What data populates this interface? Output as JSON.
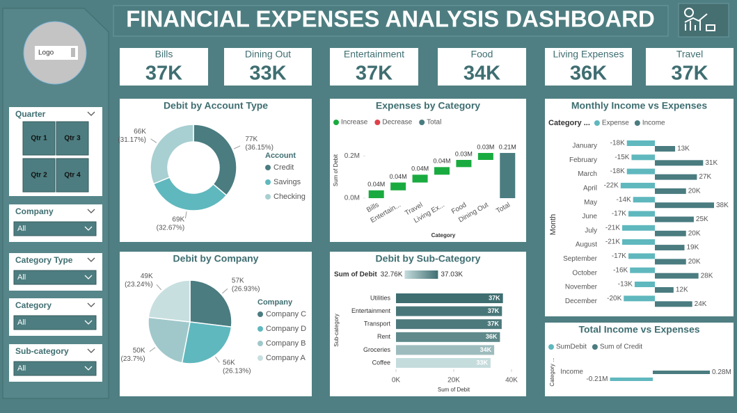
{
  "header": {
    "title": "FINANCIAL EXPENSES ANALYSIS DASHBOARD",
    "logo": "Logo"
  },
  "kpis": [
    {
      "label": "Bills",
      "value": "37K"
    },
    {
      "label": "Dining Out",
      "value": "33K"
    },
    {
      "label": "Entertainment",
      "value": "37K"
    },
    {
      "label": "Food",
      "value": "34K"
    },
    {
      "label": "Living Expenses",
      "value": "36K"
    },
    {
      "label": "Travel",
      "value": "37K"
    }
  ],
  "slicers": [
    {
      "title": "Quarter",
      "options": [
        "Qtr 1",
        "Qtr 3",
        "Qtr 2",
        "Qtr 4"
      ]
    },
    {
      "title": "Company",
      "selection": "All"
    },
    {
      "title": "Category Type",
      "selection": "All"
    },
    {
      "title": "Category",
      "selection": "All"
    },
    {
      "title": "Sub-category",
      "selection": "All"
    }
  ],
  "chart_data": [
    {
      "type": "donut",
      "title": "Debit by Account Type",
      "legend_title": "Account",
      "categories": [
        "Credit",
        "Savings",
        "Checking"
      ],
      "values": [
        76650,
        69270,
        66090
      ],
      "value_labels": [
        "77K",
        "69K",
        "66K"
      ],
      "percent_labels": [
        "(36.15%)",
        "(32.67%)",
        "(31.17%)"
      ],
      "colors": [
        "#4a7c80",
        "#5fb8be",
        "#a8cfd1"
      ]
    },
    {
      "type": "waterfall",
      "title": "Expenses by Category",
      "legend": [
        {
          "name": "Increase",
          "color": "#1aab40"
        },
        {
          "name": "Decrease",
          "color": "#e0404a"
        },
        {
          "name": "Total",
          "color": "#4a7c80"
        }
      ],
      "categories": [
        "Bills",
        "Entertain...",
        "Travel",
        "Living Ex...",
        "Food",
        "Dining Out",
        "Total"
      ],
      "measures": [
        "increase",
        "increase",
        "increase",
        "increase",
        "increase",
        "increase",
        "total"
      ],
      "values": [
        0.037,
        0.037,
        0.037,
        0.036,
        0.034,
        0.033,
        0.214
      ],
      "value_labels": [
        "0.04M",
        "0.04M",
        "0.04M",
        "0.04M",
        "0.03M",
        "0.03M",
        "0.21M"
      ],
      "ylim": [
        0,
        0.26
      ],
      "yticks": [
        {
          "value": 0,
          "label": "0.0M"
        },
        {
          "value": 0.2,
          "label": "0.2M"
        }
      ],
      "y_label": "Sum of Debit",
      "x_label": "Category"
    },
    {
      "type": "diverging-bar",
      "title": "Monthly Income vs Expenses",
      "legend_title": "Category ...",
      "categories": [
        "January",
        "February",
        "March",
        "April",
        "May",
        "June",
        "July",
        "August",
        "September",
        "October",
        "November",
        "December"
      ],
      "series": [
        {
          "name": "Expense",
          "color": "#5fb8be",
          "values": [
            -18000,
            -15000,
            -18000,
            -22000,
            -14000,
            -17000,
            -21000,
            -21000,
            -17000,
            -16000,
            -13000,
            -20000
          ],
          "value_labels": [
            "-18K",
            "-15K",
            "-18K",
            "-22K",
            "-14K",
            "-17K",
            "-21K",
            "-21K",
            "-17K",
            "-16K",
            "-13K",
            "-20K"
          ]
        },
        {
          "name": "Income",
          "color": "#4a7c80",
          "values": [
            13000,
            31000,
            27000,
            20000,
            38000,
            25000,
            20000,
            19000,
            20000,
            28000,
            12000,
            24000
          ],
          "value_labels": [
            "13K",
            "31K",
            "27K",
            "20K",
            "38K",
            "25K",
            "20K",
            "19K",
            "20K",
            "28K",
            "12K",
            "24K"
          ]
        }
      ],
      "y_label": "Month"
    },
    {
      "type": "pie",
      "title": "Debit by Company",
      "legend_title": "Company",
      "categories": [
        "Company C",
        "Company D",
        "Company B",
        "Company A"
      ],
      "values": [
        57307,
        55605,
        50434,
        49455
      ],
      "value_labels": [
        "57K",
        "56K",
        "50K",
        "49K"
      ],
      "percent_labels": [
        "(26.93%)",
        "(26.13%)",
        "(23.7%)",
        "(23.24%)"
      ],
      "colors": [
        "#4a7c80",
        "#5fb8be",
        "#a0c8cb",
        "#c8dfe0"
      ]
    },
    {
      "type": "hbar",
      "title": "Debit by Sub-Category",
      "categories": [
        "Utilities",
        "Entertainment",
        "Transport",
        "Rent",
        "Groceries",
        "Coffee"
      ],
      "values": [
        37030,
        36700,
        36600,
        36000,
        34000,
        32760
      ],
      "value_labels": [
        "37K",
        "37K",
        "37K",
        "36K",
        "34K",
        "33K"
      ],
      "color_scale": {
        "title": "Sum of Debit",
        "min": 32760,
        "min_label": "32.76K",
        "max": 37030,
        "max_label": "37.03K",
        "min_color": "#c5dcdd",
        "max_color": "#3f6e71"
      },
      "xlim": [
        0,
        40000
      ],
      "xticks": [
        {
          "value": 0,
          "label": "0K"
        },
        {
          "value": 20000,
          "label": "20K"
        },
        {
          "value": 40000,
          "label": "40K"
        }
      ],
      "x_label": "Sum of Debit",
      "y_label": "Sub-category"
    },
    {
      "type": "diverging-bar",
      "title": "Total Income vs Expenses",
      "categories": [
        "Income"
      ],
      "series": [
        {
          "name": "SumDebit",
          "color": "#5fb8be",
          "values": [
            -0.21
          ],
          "value_labels": [
            "-0.21M"
          ]
        },
        {
          "name": "Sum of Credit",
          "color": "#4a7c80",
          "values": [
            0.28
          ],
          "value_labels": [
            "0.28M"
          ]
        }
      ],
      "y_label": "Category ..."
    }
  ]
}
